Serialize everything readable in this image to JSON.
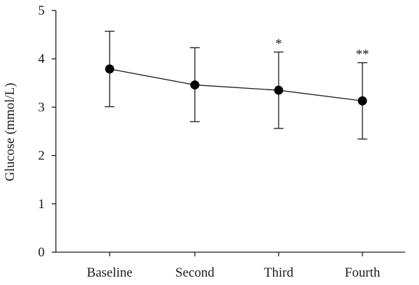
{
  "chart_data": {
    "type": "line",
    "title": "",
    "xlabel": "",
    "ylabel": "Glucose (mmol/L)",
    "ylim": [
      0,
      5
    ],
    "yticks": [
      "0",
      "1",
      "2",
      "3",
      "4",
      "5"
    ],
    "categories": [
      "Baseline",
      "Second",
      "Third",
      "Fourth"
    ],
    "series": [
      {
        "values": [
          3.79,
          3.46,
          3.35,
          3.13
        ],
        "error_upper": [
          4.57,
          4.23,
          4.14,
          3.92
        ],
        "error_lower": [
          3.01,
          2.7,
          2.56,
          2.34
        ]
      }
    ],
    "annotations": [
      "",
      "",
      "*",
      "**"
    ],
    "grid": false
  }
}
